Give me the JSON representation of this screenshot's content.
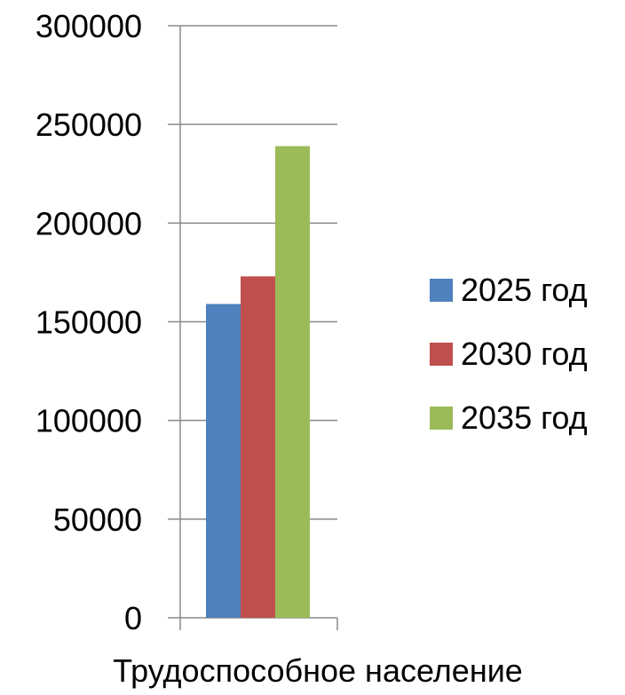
{
  "chart_data": {
    "type": "bar",
    "title": "",
    "xlabel": "",
    "ylabel": "",
    "categories": [
      "Трудоспособное население"
    ],
    "ylim": [
      0,
      300000
    ],
    "yticks": [
      0,
      50000,
      100000,
      150000,
      200000,
      250000,
      300000
    ],
    "grid": true,
    "legend_position": "right",
    "series": [
      {
        "name": "2025 год",
        "values": [
          159000
        ],
        "color": "#4F81BD"
      },
      {
        "name": "2030 год",
        "values": [
          173000
        ],
        "color": "#C0504D"
      },
      {
        "name": "2035 год",
        "values": [
          239000
        ],
        "color": "#9BBB59"
      }
    ]
  }
}
